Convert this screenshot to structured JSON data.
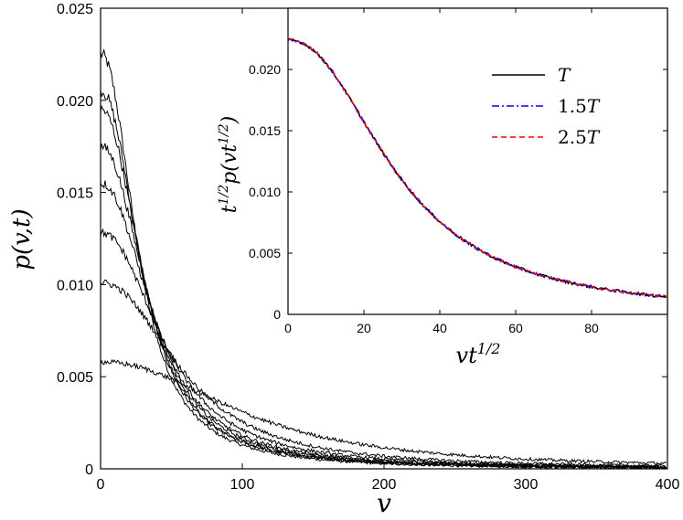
{
  "chart_data": [
    {
      "id": "main",
      "type": "line",
      "xlabel": "v",
      "ylabel": "p(v,t)",
      "xlim": [
        0,
        400
      ],
      "ylim": [
        0,
        0.025
      ],
      "xticks": [
        "0",
        "100",
        "200",
        "300",
        "400"
      ],
      "yticks": [
        "0",
        "0.005",
        "0.010",
        "0.015",
        "0.020",
        "0.025"
      ],
      "grid": false,
      "color": "#000000",
      "series": [
        {
          "p0": 0.0225,
          "tau": 28
        },
        {
          "p0": 0.0205,
          "tau": 31
        },
        {
          "p0": 0.0195,
          "tau": 32.5
        },
        {
          "p0": 0.0175,
          "tau": 36
        },
        {
          "p0": 0.0155,
          "tau": 40
        },
        {
          "p0": 0.0128,
          "tau": 48
        },
        {
          "p0": 0.0101,
          "tau": 61
        },
        {
          "p0": 0.0058,
          "tau": 106
        }
      ]
    },
    {
      "id": "inset",
      "type": "line",
      "xlabel": "vt^{1/2}",
      "ylabel": "t^{1/2}p(vt^{1/2})",
      "xlim": [
        0,
        100
      ],
      "ylim": [
        0,
        0.025
      ],
      "xticks": [
        "0",
        "20",
        "40",
        "60",
        "80"
      ],
      "yticks": [
        "0",
        "0.005",
        "0.010",
        "0.015",
        "0.020"
      ],
      "grid": false,
      "legend": "top-right",
      "series": [
        {
          "name": "T",
          "color": "#000000",
          "style": "solid"
        },
        {
          "name": "1.5T",
          "color": "#0000ff",
          "style": "dashdot"
        },
        {
          "name": "2.5T",
          "color": "#ff0000",
          "style": "dashed"
        }
      ]
    }
  ]
}
